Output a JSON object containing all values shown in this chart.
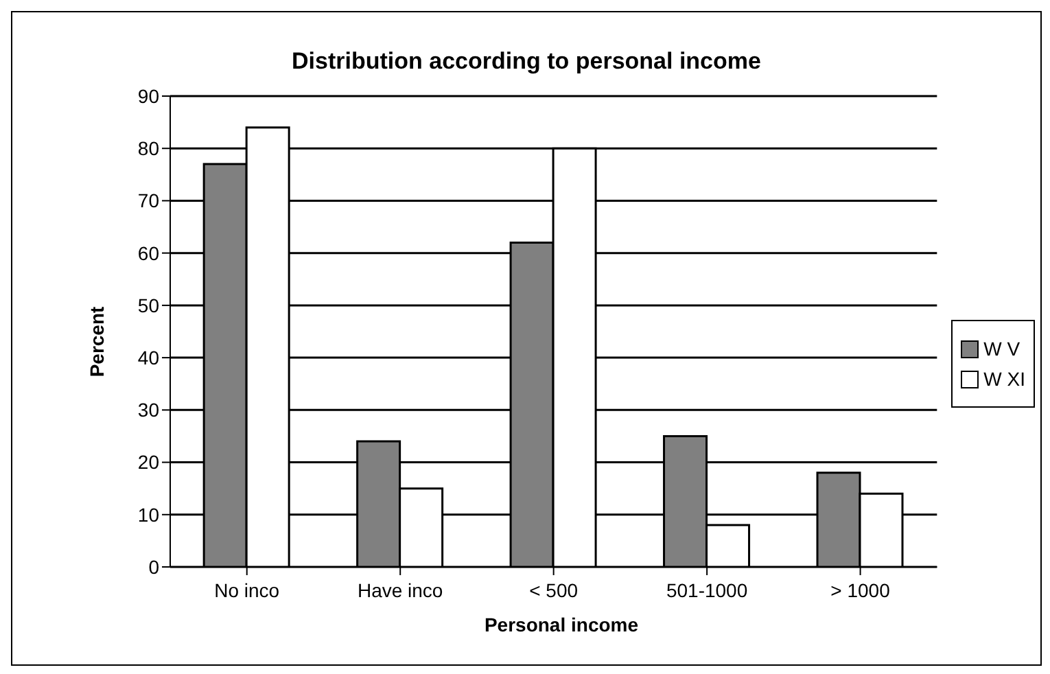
{
  "chart_data": {
    "type": "bar",
    "title": "Distribution according to personal income",
    "xlabel": "Personal income",
    "ylabel": "Percent",
    "categories": [
      "No inco",
      "Have inco",
      "< 500",
      "501-1000",
      "> 1000"
    ],
    "series": [
      {
        "name": "W V",
        "color": "#808080",
        "values": [
          77,
          24,
          62,
          25,
          18
        ]
      },
      {
        "name": "W XI",
        "color": "#ffffff",
        "values": [
          84,
          15,
          80,
          8,
          14
        ]
      }
    ],
    "ylim": [
      0,
      90
    ],
    "yticks": [
      0,
      10,
      20,
      30,
      40,
      50,
      60,
      70,
      80,
      90
    ],
    "grid": "y",
    "legend": "right"
  }
}
